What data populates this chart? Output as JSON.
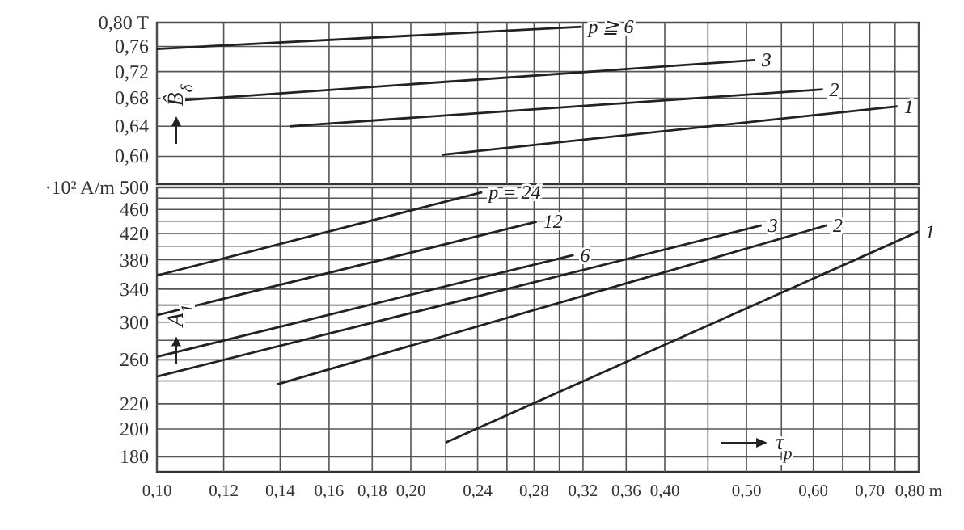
{
  "chart_data": [
    {
      "type": "line",
      "ylabel": "B̂$_{δ}$",
      "log": "xy",
      "grid": true,
      "tick_labels": "y",
      "xlim": [
        0.1,
        0.8
      ],
      "xticks": [
        {
          "value": 0.1,
          "label": null
        },
        {
          "value": 0.12,
          "label": null
        },
        {
          "value": 0.14,
          "label": null
        },
        {
          "value": 0.16,
          "label": null
        },
        {
          "value": 0.18,
          "label": null
        },
        {
          "value": 0.2,
          "label": null
        },
        {
          "value": 0.22,
          "label": null
        },
        {
          "value": 0.24,
          "label": null
        },
        {
          "value": 0.26,
          "label": null
        },
        {
          "value": 0.28,
          "label": null
        },
        {
          "value": 0.3,
          "label": null
        },
        {
          "value": 0.32,
          "label": null
        },
        {
          "value": 0.36,
          "label": null
        },
        {
          "value": 0.4,
          "label": null
        },
        {
          "value": 0.45,
          "label": null
        },
        {
          "value": 0.5,
          "label": null
        },
        {
          "value": 0.55,
          "label": null
        },
        {
          "value": 0.6,
          "label": null
        },
        {
          "value": 0.65,
          "label": null
        },
        {
          "value": 0.7,
          "label": null
        },
        {
          "value": 0.75,
          "label": null
        },
        {
          "value": 0.8,
          "label": null
        }
      ],
      "ylim": [
        0.565,
        0.8
      ],
      "yticks": [
        {
          "value": 0.6,
          "label": "0,60"
        },
        {
          "value": 0.64,
          "label": "0,64"
        },
        {
          "value": 0.68,
          "label": "0,68"
        },
        {
          "value": 0.72,
          "label": "0,72"
        },
        {
          "value": 0.76,
          "label": "0,76"
        },
        {
          "value": 0.8,
          "label": "0,80 T"
        }
      ],
      "series": [
        {
          "name": "p ≧ 6",
          "color": "#222222",
          "x": [
            0.1,
            0.319
          ],
          "values": [
            0.756,
            0.793
          ]
        },
        {
          "name": "3",
          "color": "#222222",
          "x": [
            0.1045,
            0.512
          ],
          "values": [
            0.676,
            0.738
          ]
        },
        {
          "name": "2",
          "color": "#222222",
          "x": [
            0.1436,
            0.616
          ],
          "values": [
            0.64,
            0.693
          ]
        },
        {
          "name": "1",
          "color": "#222222",
          "x": [
            0.2175,
            0.755
          ],
          "values": [
            0.602,
            0.668
          ]
        }
      ]
    },
    {
      "type": "line",
      "ylabel": "A$_{1}$",
      "xlabel": "τ$_{p}$",
      "log": "xy",
      "grid": true,
      "xlim": [
        0.1,
        0.8
      ],
      "xticks": [
        {
          "value": 0.1,
          "label": "0,10"
        },
        {
          "value": 0.12,
          "label": "0,12"
        },
        {
          "value": 0.14,
          "label": "0,14"
        },
        {
          "value": 0.16,
          "label": "0,16"
        },
        {
          "value": 0.18,
          "label": "0,18"
        },
        {
          "value": 0.2,
          "label": "0,20"
        },
        {
          "value": 0.22,
          "label": null
        },
        {
          "value": 0.24,
          "label": "0,24"
        },
        {
          "value": 0.26,
          "label": null
        },
        {
          "value": 0.28,
          "label": "0,28"
        },
        {
          "value": 0.3,
          "label": null
        },
        {
          "value": 0.32,
          "label": "0,32"
        },
        {
          "value": 0.36,
          "label": "0,36"
        },
        {
          "value": 0.4,
          "label": "0,40"
        },
        {
          "value": 0.45,
          "label": null
        },
        {
          "value": 0.5,
          "label": "0,50"
        },
        {
          "value": 0.55,
          "label": null
        },
        {
          "value": 0.6,
          "label": "0,60"
        },
        {
          "value": 0.65,
          "label": null
        },
        {
          "value": 0.7,
          "label": "0,70"
        },
        {
          "value": 0.75,
          "label": null
        },
        {
          "value": 0.8,
          "label": "0,80 m"
        }
      ],
      "ylim": [
        170,
        500
      ],
      "yticks": [
        180,
        200,
        220,
        {
          "value": 240,
          "label": null
        },
        260,
        {
          "value": 280,
          "label": null
        },
        300,
        {
          "value": 320,
          "label": null
        },
        340,
        {
          "value": 360,
          "label": null
        },
        380,
        {
          "value": 400,
          "label": null
        },
        420,
        {
          "value": 440,
          "label": null
        },
        460,
        {
          "value": 480,
          "label": null
        },
        {
          "value": 500,
          "label": "·10² A/m 500"
        }
      ],
      "series": [
        {
          "name": "p = 24",
          "color": "#222222",
          "x": [
            0.1,
            0.243
          ],
          "values": [
            358,
            491
          ]
        },
        {
          "name": "12",
          "color": "#222222",
          "x": [
            0.1,
            0.282
          ],
          "values": [
            308,
            439
          ]
        },
        {
          "name": "6",
          "color": "#222222",
          "x": [
            0.1,
            0.312
          ],
          "values": [
            263,
            387
          ]
        },
        {
          "name": "3",
          "color": "#222222",
          "x": [
            0.1,
            0.521
          ],
          "values": [
            244,
            433
          ]
        },
        {
          "name": "2",
          "color": "#222222",
          "x": [
            0.139,
            0.622
          ],
          "values": [
            237,
            433
          ]
        },
        {
          "name": "1",
          "color": "#222222",
          "x": [
            0.22,
            0.8
          ],
          "values": [
            190,
            423
          ]
        }
      ]
    }
  ]
}
